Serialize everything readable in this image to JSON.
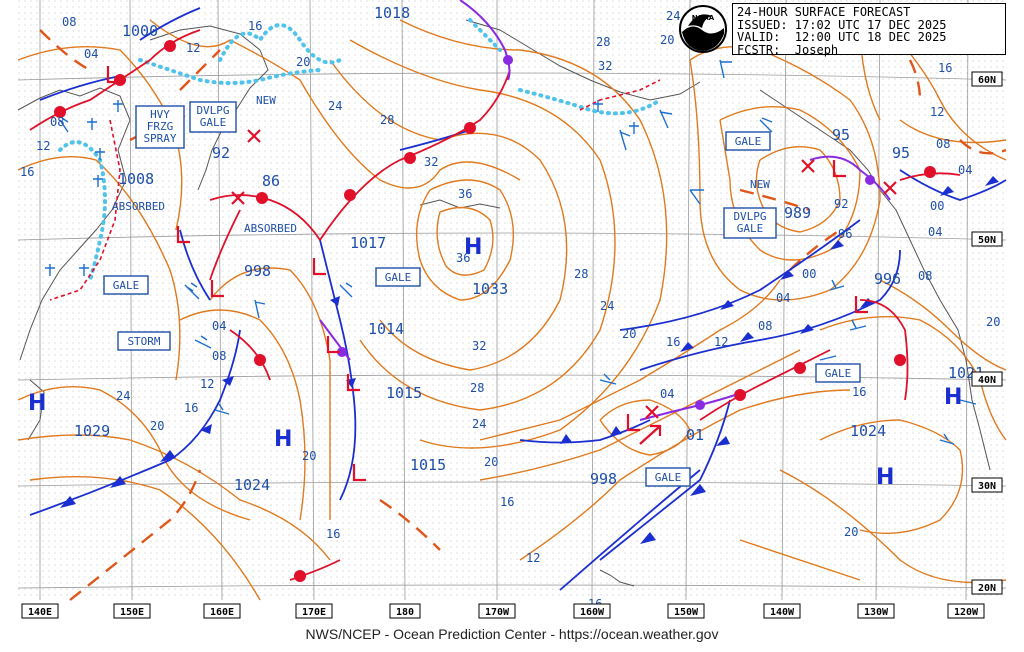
{
  "header": {
    "title": "24-HOUR SURFACE FORECAST",
    "issued": "ISSUED: 17:02 UTC 17 DEC 2025",
    "valid": "VALID:  12:00 UTC 18 DEC 2025",
    "fcstr": "FCSTR:  Joseph",
    "logo": "noaa-logo"
  },
  "footer": "NWS/NCEP - Ocean Prediction Center - https://ocean.weather.gov",
  "longitudes": [
    "140E",
    "150E",
    "160E",
    "170E",
    "180",
    "170W",
    "160W",
    "150W",
    "140W",
    "130W",
    "120W"
  ],
  "latitudes": [
    "60N",
    "50N",
    "40N",
    "30N",
    "20N"
  ],
  "warnings": [
    "HVY\nFRZG\nSPRAY",
    "DVLPG\nGALE",
    "GALE",
    "STORM",
    "GALE",
    "GALE",
    "DVLPG\nGALE",
    "GALE",
    "GALE"
  ],
  "pressure_labels": [
    "1000",
    "1018",
    "1008",
    "92",
    "86",
    "998",
    "1017",
    "1014",
    "1015",
    "1015",
    "1029",
    "1024",
    "1033",
    "998",
    "01",
    "989",
    "95",
    "95",
    "996",
    "1021",
    "1024"
  ],
  "isobar_labels": [
    "08",
    "04",
    "08",
    "12",
    "16",
    "16",
    "12",
    "20",
    "24",
    "28",
    "32",
    "36",
    "32",
    "28",
    "24",
    "20",
    "16",
    "12",
    "28",
    "24",
    "20",
    "16",
    "12",
    "08",
    "04",
    "04",
    "16",
    "20",
    "24",
    "28",
    "32",
    "36",
    "20",
    "24",
    "20",
    "16",
    "12",
    "08",
    "04",
    "00",
    "96",
    "92",
    "00",
    "04",
    "08",
    "12",
    "16",
    "20",
    "04",
    "08",
    "16",
    "20",
    "16"
  ],
  "annotations": [
    "NEW",
    "ABSORBED",
    "ABSORBED",
    "NEW"
  ],
  "centers": [
    "H",
    "H",
    "H",
    "H",
    "H"
  ]
}
